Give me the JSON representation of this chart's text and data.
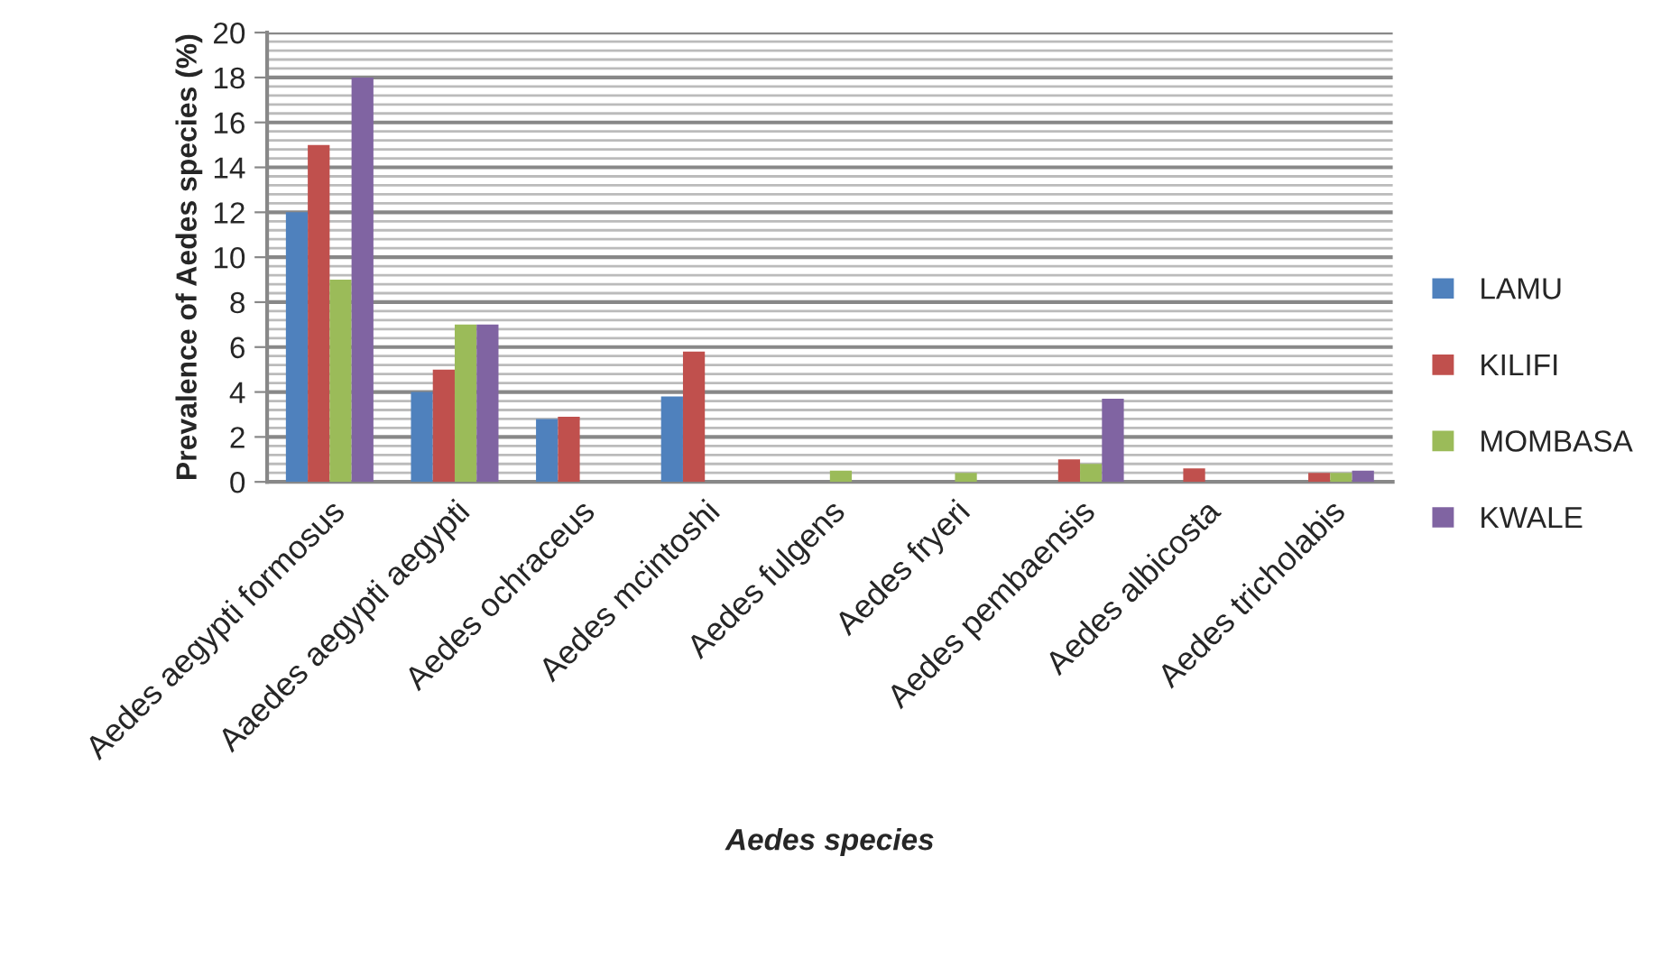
{
  "chart_data": {
    "type": "bar",
    "categories": [
      "Aedes aegypti formosus",
      "Aaedes aegypti aegypti",
      "Aedes ochraceus",
      "Aedes mcintoshi",
      "Aedes fulgens",
      "Aedes fryeri",
      "Aedes pembaensis",
      "Aedes albicosta",
      "Aedes tricholabis"
    ],
    "series": [
      {
        "name": "LAMU",
        "color": "#4f81bd",
        "values": [
          12,
          4,
          2.8,
          3.8,
          null,
          null,
          null,
          null,
          null
        ]
      },
      {
        "name": "KILIFI",
        "color": "#c0504d",
        "values": [
          15,
          5,
          2.9,
          5.8,
          null,
          null,
          1.0,
          0.6,
          0.4
        ]
      },
      {
        "name": "MOMBASA",
        "color": "#9bbb59",
        "values": [
          9,
          7,
          null,
          null,
          0.5,
          0.4,
          0.8,
          null,
          0.4
        ]
      },
      {
        "name": "KWALE",
        "color": "#8064a2",
        "values": [
          18,
          7,
          null,
          null,
          null,
          null,
          3.7,
          null,
          0.5
        ]
      }
    ],
    "ylim": [
      0,
      20
    ],
    "yticks": [
      0,
      2,
      4,
      6,
      8,
      10,
      12,
      14,
      16,
      18,
      20
    ],
    "ylabel": "Prevalence of Aedes species (%)",
    "xlabel": "Aedes species",
    "grid": "y",
    "legend": "right"
  }
}
